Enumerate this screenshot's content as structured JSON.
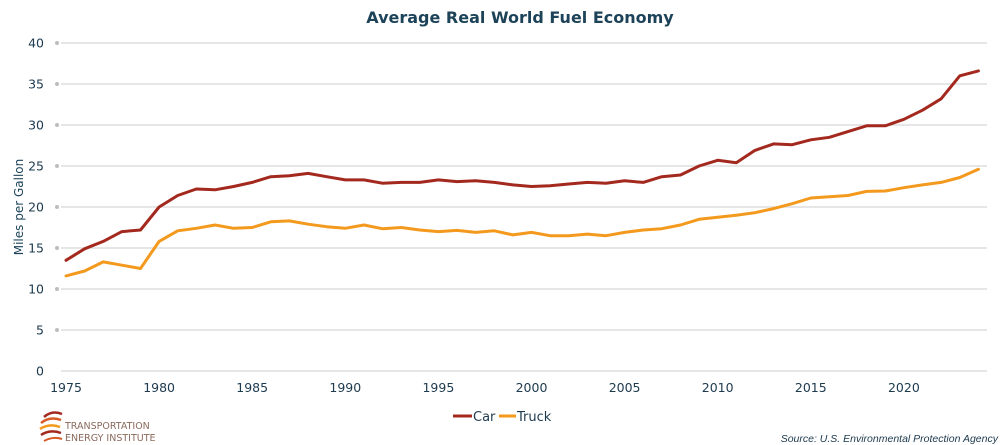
{
  "chart_data": {
    "type": "line",
    "title": "Average Real World Fuel Economy",
    "xlabel": "",
    "ylabel": "Miles per Gallon",
    "ylim": [
      0,
      40
    ],
    "yticks": [
      0,
      5,
      10,
      15,
      20,
      25,
      30,
      35,
      40
    ],
    "xlim": [
      1975,
      2024
    ],
    "xticks": [
      1975,
      1980,
      1985,
      1990,
      1995,
      2000,
      2005,
      2010,
      2015,
      2020
    ],
    "grid": true,
    "legend_position": "bottom-center",
    "x": [
      1975,
      1976,
      1977,
      1978,
      1979,
      1980,
      1981,
      1982,
      1983,
      1984,
      1985,
      1986,
      1987,
      1988,
      1989,
      1990,
      1991,
      1992,
      1993,
      1994,
      1995,
      1996,
      1997,
      1998,
      1999,
      2000,
      2001,
      2002,
      2003,
      2004,
      2005,
      2006,
      2007,
      2008,
      2009,
      2010,
      2011,
      2012,
      2013,
      2014,
      2015,
      2016,
      2017,
      2018,
      2019,
      2020,
      2021,
      2022,
      2023,
      2024
    ],
    "series": [
      {
        "name": "Car",
        "color": "#a3291f",
        "values": [
          13.5,
          14.9,
          15.8,
          17.0,
          17.2,
          20.0,
          21.4,
          22.2,
          22.1,
          22.5,
          23.0,
          23.7,
          23.8,
          24.1,
          23.7,
          23.3,
          23.3,
          22.9,
          23.0,
          23.0,
          23.3,
          23.1,
          23.2,
          23.0,
          22.7,
          22.5,
          22.6,
          22.8,
          23.0,
          22.9,
          23.2,
          23.0,
          23.7,
          23.9,
          25.0,
          25.7,
          25.4,
          26.9,
          27.7,
          27.6,
          28.2,
          28.5,
          29.2,
          29.9,
          29.9,
          30.7,
          31.8,
          33.2,
          36.0,
          36.6
        ]
      },
      {
        "name": "Truck",
        "color": "#f39a1e",
        "values": [
          11.6,
          12.2,
          13.3,
          12.9,
          12.5,
          15.8,
          17.1,
          17.4,
          17.8,
          17.4,
          17.5,
          18.2,
          18.3,
          17.9,
          17.6,
          17.4,
          17.8,
          17.35,
          17.5,
          17.2,
          17.0,
          17.15,
          16.9,
          17.1,
          16.6,
          16.9,
          16.5,
          16.5,
          16.7,
          16.5,
          16.9,
          17.2,
          17.35,
          17.8,
          18.5,
          18.75,
          19.0,
          19.3,
          19.8,
          20.4,
          21.1,
          21.25,
          21.4,
          21.9,
          21.95,
          22.35,
          22.7,
          23.0,
          23.6,
          24.6
        ]
      }
    ],
    "source": "Source:  U.S. Environmental Protection Agency"
  },
  "branding": {
    "logo_line1": "TRANSPORTATION",
    "logo_line2": "ENERGY INSTITUTE"
  }
}
